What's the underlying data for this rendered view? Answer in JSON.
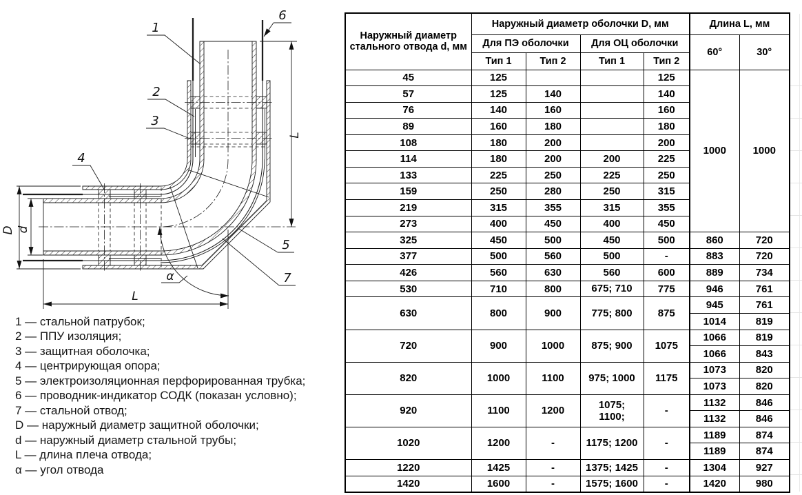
{
  "diagram": {
    "callouts": {
      "c1": "1",
      "c2": "2",
      "c3": "3",
      "c4": "4",
      "c5": "5",
      "c6": "6",
      "c7": "7"
    },
    "dims": {
      "D": "D",
      "d": "d",
      "L_right": "L",
      "L_bottom": "L",
      "alpha": "α"
    }
  },
  "legend": {
    "items": [
      "1 — стальной патрубок;",
      "2 — ППУ изоляция;",
      "3 — защитная оболочка;",
      "4 — центрирующая опора;",
      "5 — электроизоляционная перфорированная трубка;",
      "6 — проводник-индикатор СОДК (показан условно);",
      "7 — стальной отвод;",
      "D — наружный диаметр защитной оболочки;",
      "d — наружный диаметр стальной трубы;",
      "L — длина плеча отвода;",
      "α — угол отвода"
    ]
  },
  "table": {
    "header": {
      "col_d": "Наружный диаметр\nстального отвода d, мм",
      "group_D": "Наружный диаметр оболочки D, мм",
      "group_L": "Длина L, мм",
      "pe": "Для ПЭ оболочки",
      "oc": "Для ОЦ оболочки",
      "t1a": "Тип 1",
      "t2a": "Тип 2",
      "t1b": "Тип 1",
      "t2b": "Тип 2",
      "a60": "60°",
      "a30": "30°"
    },
    "rows": [
      {
        "d": "45",
        "pe1": "125",
        "pe2": "",
        "oc1": "",
        "oc2": "125",
        "l60": "1000",
        "l30": "1000",
        "lspan": 10
      },
      {
        "d": "57",
        "pe1": "125",
        "pe2": "140",
        "oc1": "",
        "oc2": "140"
      },
      {
        "d": "76",
        "pe1": "140",
        "pe2": "160",
        "oc1": "",
        "oc2": "160"
      },
      {
        "d": "89",
        "pe1": "160",
        "pe2": "180",
        "oc1": "",
        "oc2": "180"
      },
      {
        "d": "108",
        "pe1": "180",
        "pe2": "200",
        "oc1": "",
        "oc2": "200"
      },
      {
        "d": "114",
        "pe1": "180",
        "pe2": "200",
        "oc1": "200",
        "oc2": "225"
      },
      {
        "d": "133",
        "pe1": "225",
        "pe2": "250",
        "oc1": "225",
        "oc2": "250"
      },
      {
        "d": "159",
        "pe1": "250",
        "pe2": "280",
        "oc1": "250",
        "oc2": "315"
      },
      {
        "d": "219",
        "pe1": "315",
        "pe2": "355",
        "oc1": "315",
        "oc2": "355"
      },
      {
        "d": "273",
        "pe1": "400",
        "pe2": "450",
        "oc1": "400",
        "oc2": "450"
      },
      {
        "d": "325",
        "pe1": "450",
        "pe2": "500",
        "oc1": "450",
        "oc2": "500",
        "l60": "860",
        "l30": "720"
      },
      {
        "d": "377",
        "pe1": "500",
        "pe2": "560",
        "oc1": "500",
        "oc2": "-",
        "l60": "883",
        "l30": "720"
      },
      {
        "d": "426",
        "pe1": "560",
        "pe2": "630",
        "oc1": "560",
        "oc2": "600",
        "l60": "889",
        "l30": "734"
      },
      {
        "d": "530",
        "pe1": "710",
        "pe2": "800",
        "oc1": "675; 710",
        "oc2": "775",
        "l60": "946",
        "l30": "761"
      },
      {
        "d": "630",
        "pe1": "800",
        "pe2": "900",
        "oc1": "775; 800",
        "oc2": "875",
        "sub": [
          [
            "945",
            "761"
          ],
          [
            "1014",
            "819"
          ]
        ]
      },
      {
        "d": "720",
        "pe1": "900",
        "pe2": "1000",
        "oc1": "875; 900",
        "oc2": "1075",
        "sub": [
          [
            "1066",
            "819"
          ],
          [
            "1066",
            "843"
          ]
        ]
      },
      {
        "d": "820",
        "pe1": "1000",
        "pe2": "1100",
        "oc1": "975; 1000",
        "oc2": "1175",
        "sub": [
          [
            "1073",
            "820"
          ],
          [
            "1073",
            "820"
          ]
        ]
      },
      {
        "d": "920",
        "pe1": "1100",
        "pe2": "1200",
        "oc1": "1075;\n1100;",
        "oc2": "-",
        "sub": [
          [
            "1132",
            "846"
          ],
          [
            "1132",
            "846"
          ]
        ]
      },
      {
        "d": "1020",
        "pe1": "1200",
        "pe2": "-",
        "oc1": "1175; 1200",
        "oc2": "-",
        "sub": [
          [
            "1189",
            "874"
          ],
          [
            "1189",
            "874"
          ]
        ]
      },
      {
        "d": "1220",
        "pe1": "1425",
        "pe2": "-",
        "oc1": "1375; 1425",
        "oc2": "-",
        "l60": "1304",
        "l30": "927"
      },
      {
        "d": "1420",
        "pe1": "1600",
        "pe2": "-",
        "oc1": "1575; 1600",
        "oc2": "-",
        "l60": "1420",
        "l30": "980"
      }
    ]
  }
}
